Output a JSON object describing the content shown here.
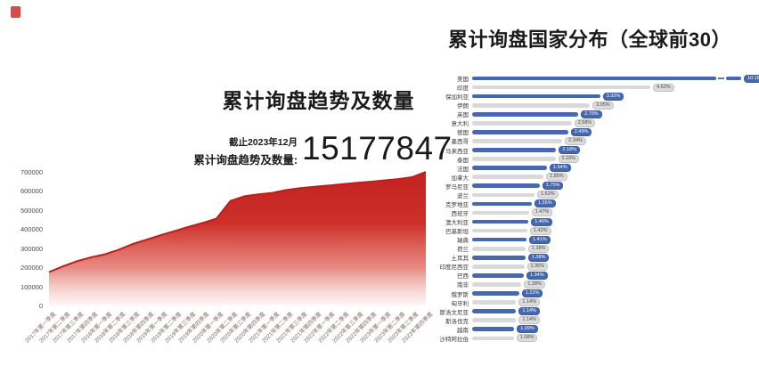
{
  "colors": {
    "accent_red": "#c9302c",
    "area_top": "#c32421",
    "area_mid": "#d0342d",
    "area_fade": "#fdf0ee",
    "bar_blue": "#4668af",
    "bar_gray": "#d9d9d9"
  },
  "left_caption": {
    "as_of": "截止2023年12月",
    "total_label": "累计询盘趋势及数量:",
    "total_value": "15177847"
  },
  "chart_data": [
    {
      "type": "area",
      "title": "累计询盘趋势及数量",
      "ylabel": "",
      "xlabel": "",
      "ylim": [
        0,
        700000
      ],
      "grid": false,
      "y_ticks": [
        "0",
        "100000",
        "200000",
        "300000",
        "400000",
        "500000",
        "600000",
        "700000"
      ],
      "x": [
        "2017年第一季度",
        "2017年第二季度",
        "2017年第三季度",
        "2017年第四季度",
        "2018年第一季度",
        "2018年第二季度",
        "2018年第三季度",
        "2018年第四季度",
        "2019年第一季度",
        "2019年第二季度",
        "2019年第三季度",
        "2019年第四季度",
        "2020年第一季度",
        "2020年第二季度",
        "2020年第三季度",
        "2020年第四季度",
        "2021年第一季度",
        "2021年第二季度",
        "2021年第三季度",
        "2021年第四季度",
        "2022年第一季度",
        "2022年第二季度",
        "2022年第三季度",
        "2022年第四季度",
        "2023年第一季度",
        "2023年第二季度",
        "2023年第三季度",
        "2023年第四季度"
      ],
      "values": [
        175000,
        205000,
        232000,
        252000,
        268000,
        292000,
        322000,
        345000,
        368000,
        390000,
        412000,
        432000,
        455000,
        548000,
        572000,
        582000,
        590000,
        605000,
        615000,
        622000,
        628000,
        635000,
        642000,
        648000,
        655000,
        662000,
        672000,
        700000
      ],
      "annotation": "截止2023年12月 累计询盘趋势及数量: 15177847"
    },
    {
      "type": "bar",
      "orientation": "horizontal",
      "title": "累计询盘国家分布（全球前30）",
      "unit": "%",
      "legend": null,
      "rows": [
        {
          "name": "美国",
          "pct": 10.18,
          "label": "10.18%",
          "break": true
        },
        {
          "name": "印度",
          "pct": 4.62,
          "label": "4.62%"
        },
        {
          "name": "保加利亚",
          "pct": 3.32,
          "label": "3.32%"
        },
        {
          "name": "伊朗",
          "pct": 3.05,
          "label": "3.05%"
        },
        {
          "name": "英国",
          "pct": 2.75,
          "label": "2.75%"
        },
        {
          "name": "意大利",
          "pct": 2.58,
          "label": "2.58%"
        },
        {
          "name": "德国",
          "pct": 2.49,
          "label": "2.49%"
        },
        {
          "name": "墨西哥",
          "pct": 2.34,
          "label": "2.34%"
        },
        {
          "name": "马来西亚",
          "pct": 2.18,
          "label": "2.18%"
        },
        {
          "name": "泰国",
          "pct": 2.16,
          "label": "2.16%"
        },
        {
          "name": "法国",
          "pct": 1.94,
          "label": "1.94%"
        },
        {
          "name": "加拿大",
          "pct": 1.85,
          "label": "1.85%"
        },
        {
          "name": "罗马尼亚",
          "pct": 1.75,
          "label": "1.75%"
        },
        {
          "name": "波兰",
          "pct": 1.62,
          "label": "1.62%"
        },
        {
          "name": "克罗地亚",
          "pct": 1.55,
          "label": "1.55%"
        },
        {
          "name": "西班牙",
          "pct": 1.47,
          "label": "1.47%"
        },
        {
          "name": "澳大利亚",
          "pct": 1.46,
          "label": "1.46%"
        },
        {
          "name": "巴基斯坦",
          "pct": 1.43,
          "label": "1.43%"
        },
        {
          "name": "瑞典",
          "pct": 1.41,
          "label": "1.41%"
        },
        {
          "name": "荷兰",
          "pct": 1.38,
          "label": "1.38%"
        },
        {
          "name": "土耳其",
          "pct": 1.38,
          "label": "1.38%"
        },
        {
          "name": "印度尼西亚",
          "pct": 1.35,
          "label": "1.35%"
        },
        {
          "name": "巴西",
          "pct": 1.34,
          "label": "1.34%"
        },
        {
          "name": "南非",
          "pct": 1.28,
          "label": "1.28%"
        },
        {
          "name": "俄罗斯",
          "pct": 1.22,
          "label": "1.22%"
        },
        {
          "name": "匈牙利",
          "pct": 1.14,
          "label": "1.14%"
        },
        {
          "name": "斯洛文尼亚",
          "pct": 1.14,
          "label": "1.14%"
        },
        {
          "name": "斯洛伐克",
          "pct": 1.14,
          "label": "1.14%"
        },
        {
          "name": "越南",
          "pct": 1.09,
          "label": "1.09%"
        },
        {
          "name": "沙特阿拉伯",
          "pct": 1.08,
          "label": "1.08%"
        }
      ]
    }
  ]
}
